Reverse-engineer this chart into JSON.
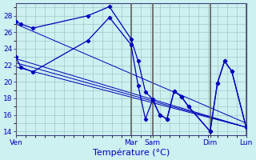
{
  "title": "Température (°C)",
  "background_color": "#cdf0f0",
  "grid_color": "#a0c8c8",
  "line_color": "#0000bb",
  "sep_color": "#606060",
  "ylim": [
    13.5,
    29.5
  ],
  "yticks": [
    14,
    16,
    18,
    20,
    22,
    24,
    26,
    28
  ],
  "xlim": [
    0,
    192
  ],
  "day_labels": [
    "Ven",
    "Mar",
    "Sam",
    "Dim",
    "Lun"
  ],
  "day_positions": [
    0,
    96,
    114,
    162,
    192
  ],
  "sep_positions": [
    0,
    96,
    114,
    162,
    192
  ],
  "series_upper": {
    "x": [
      0,
      4,
      14,
      60,
      78,
      96,
      102,
      108,
      114,
      120,
      126,
      132,
      138,
      144,
      162,
      168,
      174,
      180,
      192
    ],
    "y": [
      27.3,
      27.0,
      26.5,
      28.0,
      29.1,
      25.2,
      22.5,
      18.8,
      17.9,
      16.0,
      15.5,
      18.9,
      18.2,
      17.0,
      14.0,
      19.8,
      22.5,
      21.3,
      14.5
    ]
  },
  "series_lower": {
    "x": [
      0,
      4,
      14,
      60,
      78,
      96,
      102,
      108,
      114,
      120,
      126,
      132,
      138,
      144,
      162,
      168,
      174,
      180,
      192
    ],
    "y": [
      23.0,
      21.8,
      21.2,
      25.0,
      27.8,
      24.5,
      19.5,
      15.5,
      17.8,
      16.0,
      15.5,
      18.9,
      18.2,
      17.0,
      14.0,
      19.8,
      22.5,
      21.3,
      14.5
    ]
  },
  "trend_lines": [
    {
      "x": [
        0,
        192
      ],
      "y": [
        27.0,
        15.0
      ]
    },
    {
      "x": [
        0,
        192
      ],
      "y": [
        22.8,
        14.5
      ]
    },
    {
      "x": [
        0,
        192
      ],
      "y": [
        22.3,
        14.5
      ]
    },
    {
      "x": [
        0,
        192
      ],
      "y": [
        21.8,
        14.5
      ]
    }
  ]
}
